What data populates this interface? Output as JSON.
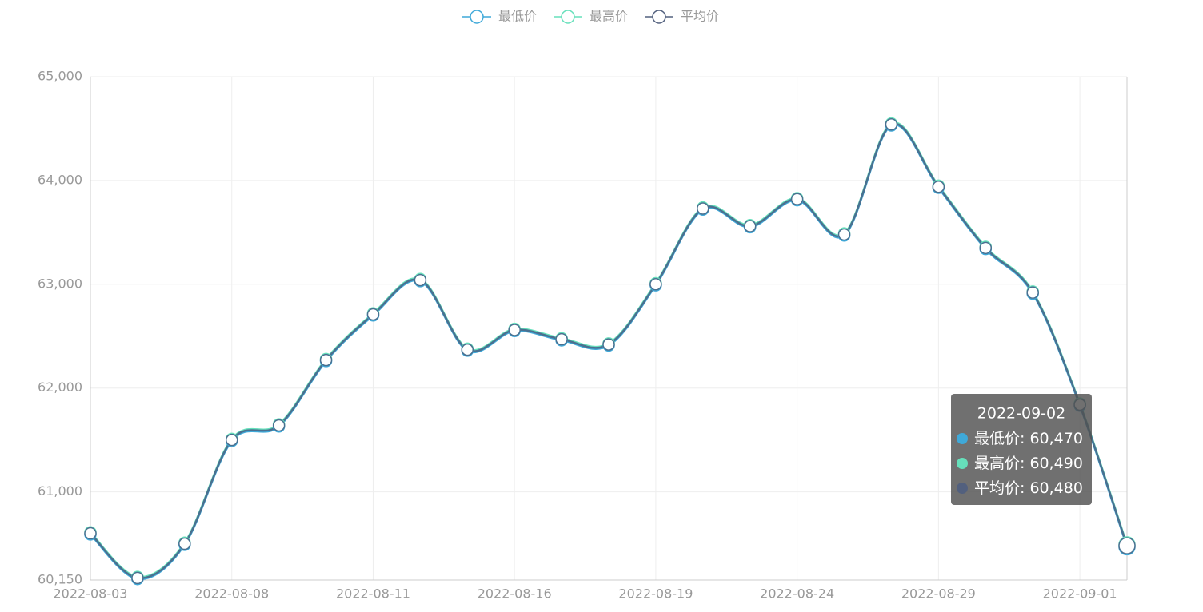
{
  "chart_data": {
    "type": "line",
    "categories": [
      "2022-08-03",
      null,
      null,
      "2022-08-08",
      null,
      null,
      "2022-08-11",
      null,
      null,
      "2022-08-16",
      null,
      null,
      "2022-08-19",
      null,
      null,
      "2022-08-24",
      null,
      null,
      "2022-08-29",
      null,
      null,
      "2022-09-01",
      "2022-09-02"
    ],
    "series": [
      {
        "name": "最低价",
        "color": "#3fa9d9",
        "values": [
          60590,
          60160,
          60490,
          61490,
          61630,
          62260,
          62700,
          63030,
          62360,
          62550,
          62460,
          62410,
          62990,
          63720,
          63550,
          63810,
          63470,
          64530,
          63930,
          63340,
          62910,
          61830,
          60470
        ],
        "value_labels": [
          null,
          null,
          null,
          null,
          null,
          null,
          null,
          null,
          null,
          null,
          null,
          null,
          null,
          null,
          null,
          null,
          null,
          null,
          null,
          null,
          null,
          null,
          "60,470"
        ]
      },
      {
        "name": "最高价",
        "color": "#66e0bb",
        "values": [
          60610,
          60180,
          60510,
          61510,
          61650,
          62280,
          62720,
          63050,
          62380,
          62570,
          62480,
          62430,
          63010,
          63740,
          63570,
          63830,
          63490,
          64550,
          63950,
          63360,
          62930,
          61850,
          60490
        ],
        "value_labels": [
          null,
          null,
          null,
          null,
          null,
          null,
          null,
          null,
          null,
          null,
          null,
          null,
          null,
          null,
          null,
          null,
          null,
          null,
          null,
          null,
          null,
          null,
          "60,490"
        ]
      },
      {
        "name": "平均价",
        "color": "#52607e",
        "values": [
          60600,
          60170,
          60500,
          61500,
          61640,
          62270,
          62710,
          63040,
          62370,
          62560,
          62470,
          62420,
          63000,
          63730,
          63560,
          63820,
          63480,
          64540,
          63940,
          63350,
          62920,
          61840,
          60480
        ],
        "value_labels": [
          null,
          null,
          null,
          null,
          null,
          null,
          null,
          null,
          null,
          null,
          null,
          null,
          null,
          null,
          null,
          null,
          null,
          null,
          null,
          null,
          null,
          null,
          "60,480"
        ]
      }
    ],
    "ylim": [
      60150,
      65000
    ],
    "yticks": [
      {
        "value": 60150,
        "label": "60,150"
      },
      {
        "value": 61000,
        "label": "61,000"
      },
      {
        "value": 62000,
        "label": "62,000"
      },
      {
        "value": 63000,
        "label": "63,000"
      },
      {
        "value": 64000,
        "label": "64,000"
      },
      {
        "value": 65000,
        "label": "65,000"
      }
    ],
    "grid": true,
    "legend": "top",
    "smooth": true
  }
}
